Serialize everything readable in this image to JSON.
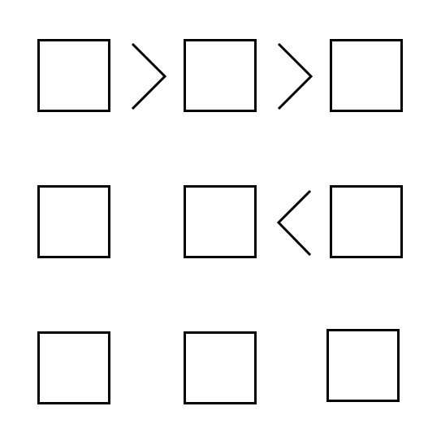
{
  "grid": {
    "rows": 3,
    "cols": 3,
    "cells": [
      [
        "",
        "",
        ""
      ],
      [
        "",
        "",
        ""
      ],
      [
        "",
        "",
        ""
      ]
    ]
  },
  "constraints": {
    "horizontal": [
      {
        "row": 0,
        "between": [
          0,
          1
        ],
        "sign": "greater-than"
      },
      {
        "row": 0,
        "between": [
          1,
          2
        ],
        "sign": "greater-than"
      },
      {
        "row": 1,
        "between": [
          1,
          2
        ],
        "sign": "less-than"
      }
    ],
    "vertical": []
  },
  "colors": {
    "stroke": "#000000",
    "background": "#ffffff"
  }
}
